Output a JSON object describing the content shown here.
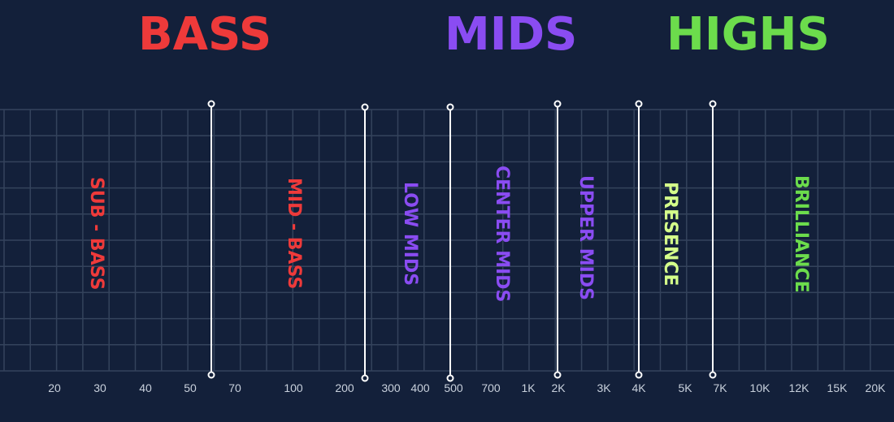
{
  "categories": [
    {
      "id": "bass",
      "label": "BASS",
      "color": "#ee3a3a"
    },
    {
      "id": "mids",
      "label": "MIDS",
      "color": "#8a4cf2"
    },
    {
      "id": "highs",
      "label": "HIGHS",
      "color": "#6cdc4c"
    }
  ],
  "frequency_ticks": [
    "20",
    "30",
    "40",
    "50",
    "70",
    "100",
    "200",
    "300",
    "400",
    "500",
    "700",
    "1K",
    "2K",
    "3K",
    "4K",
    "5K",
    "7K",
    "10K",
    "12K",
    "15K",
    "20K"
  ],
  "bands": [
    {
      "label": "SUB - BASS",
      "color": "#ee3a3a"
    },
    {
      "label": "MID - BASS",
      "color": "#ee3a3a"
    },
    {
      "label": "LOW MIDS",
      "color": "#8a4cf2"
    },
    {
      "label": "CENTER MIDS",
      "color": "#8a4cf2"
    },
    {
      "label": "UPPER MIDS",
      "color": "#8a4cf2"
    },
    {
      "label": "PRESENCE",
      "color": "#d4ff8a"
    },
    {
      "label": "BRILLIANCE",
      "color": "#6cdc4c"
    }
  ],
  "colors": {
    "background": "#13203a",
    "grid": "#34435c",
    "divider": "#ffffff"
  }
}
